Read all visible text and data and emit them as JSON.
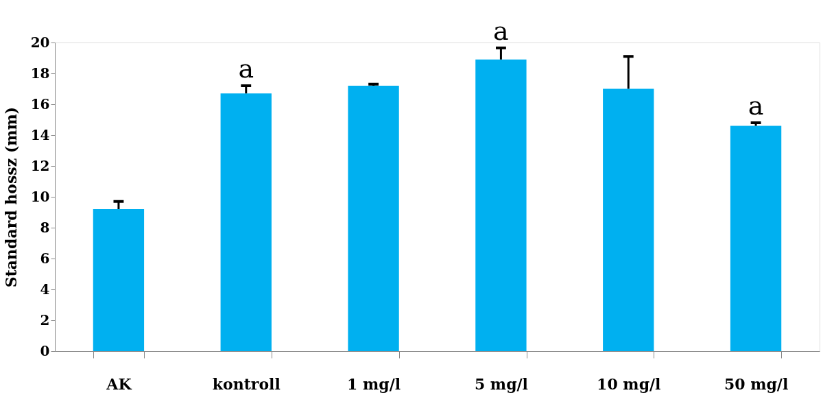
{
  "chart_data": {
    "type": "bar",
    "ylabel": "Standard hossz (mm)",
    "categories": [
      "AK",
      "kontroll",
      "1 mg/l",
      "5 mg/l",
      "10 mg/l",
      "50 mg/l"
    ],
    "values": [
      9.2,
      16.7,
      17.2,
      18.9,
      17.0,
      14.6
    ],
    "errors": [
      0.5,
      0.5,
      0.1,
      0.75,
      2.1,
      0.2
    ],
    "color": "#00b0f0",
    "ylim": [
      0,
      20
    ],
    "yticks": [
      0,
      2,
      4,
      6,
      8,
      10,
      12,
      14,
      16,
      18,
      20
    ],
    "grid": false,
    "annotations": [
      {
        "text": "a",
        "x": "kontroll",
        "y": 17.2
      },
      {
        "text": "a",
        "x": "5 mg/l",
        "y": 19.65
      },
      {
        "text": "a",
        "x": "50 mg/l",
        "y": 14.8
      }
    ]
  }
}
